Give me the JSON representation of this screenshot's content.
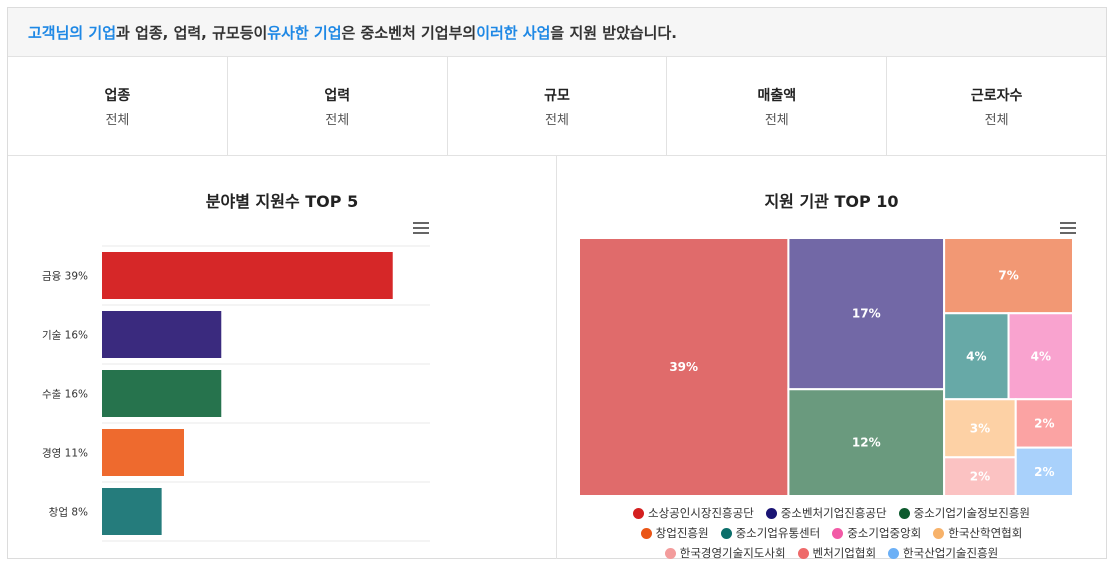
{
  "header": {
    "parts": [
      {
        "text": "고객님의 기업",
        "highlight": true
      },
      {
        "text": "과 업종, 업력, 규모등이 ",
        "highlight": false
      },
      {
        "text": "유사한 기업",
        "highlight": true
      },
      {
        "text": "은 중소벤처 기업부의 ",
        "highlight": false
      },
      {
        "text": "이러한 사업",
        "highlight": true
      },
      {
        "text": "을 지원 받았습니다.",
        "highlight": false
      }
    ]
  },
  "filters": [
    {
      "label": "업종",
      "value": "전체"
    },
    {
      "label": "업력",
      "value": "전체"
    },
    {
      "label": "규모",
      "value": "전체"
    },
    {
      "label": "매출액",
      "value": "전체"
    },
    {
      "label": "근로자수",
      "value": "전체"
    }
  ],
  "chart_data": [
    {
      "type": "bar",
      "orientation": "horizontal",
      "title": "분야별 지원수 TOP 5",
      "categories": [
        "금융 39%",
        "기술 16%",
        "수출 16%",
        "경영 11%",
        "창업 8%"
      ],
      "values": [
        39,
        16,
        16,
        11,
        8
      ],
      "colors": [
        "#d62728",
        "#3a2a7e",
        "#26734d",
        "#ee6a2e",
        "#257c7c"
      ],
      "xlim": [
        0,
        44
      ]
    },
    {
      "type": "treemap",
      "title": "지원 기관 TOP 10",
      "series": [
        {
          "name": "소상공인시장진흥공단",
          "value": 39,
          "label": "39%",
          "color": "#e06b6b",
          "legend": "#d41f1f"
        },
        {
          "name": "중소벤처기업진흥공단",
          "value": 17,
          "label": "17%",
          "color": "#7268a6",
          "legend": "#1a1474"
        },
        {
          "name": "중소기업기술정보진흥원",
          "value": 12,
          "label": "12%",
          "color": "#6a9a7e",
          "legend": "#0d5a2e"
        },
        {
          "name": "창업진흥원",
          "value": 7,
          "label": "7%",
          "color": "#f29874",
          "legend": "#ea5516"
        },
        {
          "name": "중소기업유통센터",
          "value": 4,
          "label": "4%",
          "color": "#67a9a7",
          "legend": "#0b6e6a"
        },
        {
          "name": "중소기업중앙회",
          "value": 4,
          "label": "4%",
          "color": "#f9a3cf",
          "legend": "#f25aa6"
        },
        {
          "name": "한국산학연협회",
          "value": 3,
          "label": "3%",
          "color": "#fdd1a5",
          "legend": "#f7b26a"
        },
        {
          "name": "한국경영기술지도사회",
          "value": 2,
          "label": "2%",
          "color": "#fbc2c2",
          "legend": "#f39c9c"
        },
        {
          "name": "벤처기업협회",
          "value": 2,
          "label": "2%",
          "color": "#fba3a3",
          "legend": "#ee6a6a"
        },
        {
          "name": "한국산업기술진흥원",
          "value": 2,
          "label": "2%",
          "color": "#a9d1fb",
          "legend": "#6cb0f6"
        }
      ]
    }
  ]
}
